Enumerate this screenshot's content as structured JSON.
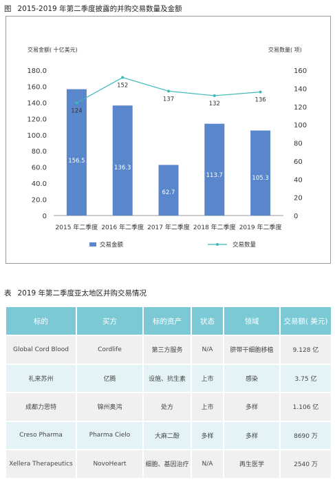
{
  "figure": {
    "prefix": "图",
    "title": "2015-2019 年第二季度披露的并购交易数量及金额"
  },
  "chart_data": {
    "type": "bar+line",
    "categories": [
      "2015 年二季度",
      "2016 年二季度",
      "2017 年二季度",
      "2018 年二季度",
      "2019 年二季度"
    ],
    "y_left_label": "交易金额( 十亿美元)",
    "y_right_label": "交易数量( 项)",
    "y_left_ticks": [
      "180.0",
      "160.0",
      "140.0",
      "120.0",
      "100.0",
      "80.0",
      "60.0",
      "40.0",
      "20.0",
      "0"
    ],
    "y_right_ticks": [
      "160",
      "140",
      "120",
      "100",
      "80",
      "60",
      "40",
      "20",
      "0"
    ],
    "ylim_left": [
      0,
      180
    ],
    "ylim_right": [
      0,
      160
    ],
    "grid": false,
    "legend_position": "bottom",
    "series": [
      {
        "name": "交易金额",
        "type": "bar",
        "axis": "left",
        "color": "#5a86cc",
        "values": [
          156.5,
          136.3,
          62.7,
          113.7,
          105.3
        ],
        "labels": [
          "156.5",
          "136.3",
          "62.7",
          "113.7",
          "105.3"
        ]
      },
      {
        "name": "交易数量",
        "type": "line",
        "axis": "right",
        "color": "#3bb8b8",
        "values": [
          124,
          152,
          137,
          132,
          136
        ],
        "labels": [
          "124",
          "152",
          "137",
          "132",
          "136"
        ]
      }
    ]
  },
  "table": {
    "prefix": "表",
    "title": "2019 年第二季度亚太地区并购交易情况",
    "header_color": "#7cc9d6",
    "headers": [
      "标的",
      "买方",
      "标的资产",
      "状态",
      "领域",
      "交易额( 美元)"
    ],
    "rows": [
      [
        "Global Cord Blood",
        "Cordlife",
        "第三方服务",
        "N/A",
        "脐带干细胞移植",
        "9.128 亿"
      ],
      [
        "礼来苏州",
        "亿腾",
        "设施、抗生素",
        "上市",
        "感染",
        "3.75 亿"
      ],
      [
        "成都力思特",
        "锦州奥鸿",
        "处方",
        "上市",
        "多样",
        "1.106 亿"
      ],
      [
        "Creso Pharma",
        "Pharma Cielo",
        "大麻二酚",
        "多样",
        "多样",
        "8690 万"
      ],
      [
        "Xellera Therapeutics",
        "NovoHeart",
        "细胞、基因治疗",
        "N/A",
        "再生医学",
        "2540 万"
      ]
    ]
  }
}
